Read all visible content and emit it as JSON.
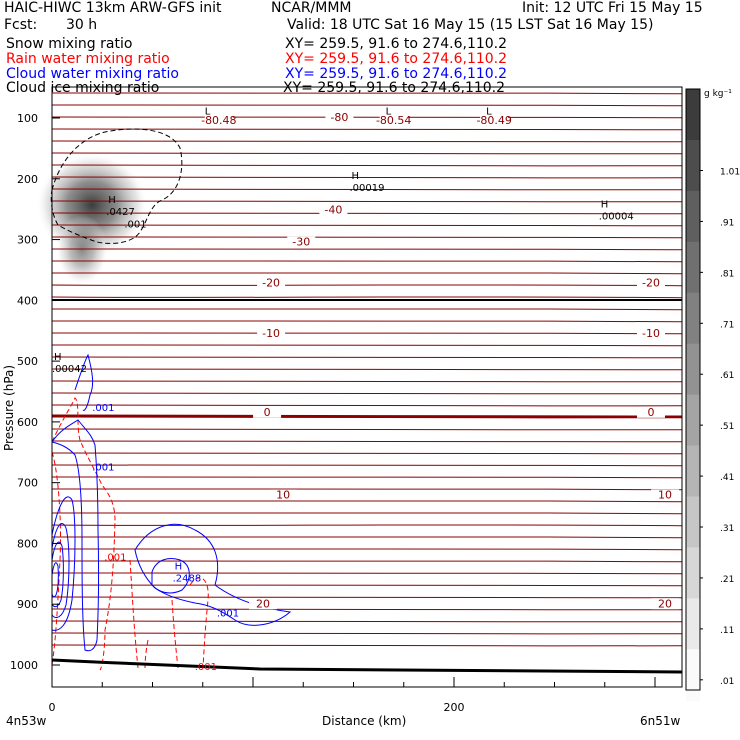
{
  "header": {
    "model": "HAIC-HIWC 13km ARW-GFS init",
    "org": "NCAR/MMM",
    "init": "Init: 12 UTC Fri 15 May 15",
    "fcst_label": "Fcst:",
    "fcst_value": "30 h",
    "valid": "Valid: 18 UTC Sat 16 May 15 (15 LST Sat 16 May 15)"
  },
  "fields": [
    {
      "name": "Snow mixing ratio",
      "xy": "XY= 259.5, 91.6 to 274.6,110.2",
      "color": "#000000"
    },
    {
      "name": "Rain water mixing ratio",
      "xy": "XY= 259.5, 91.6 to 274.6,110.2",
      "color": "#ff0000"
    },
    {
      "name": "Cloud water mixing ratio",
      "xy": "XY= 259.5, 91.6 to 274.6,110.2",
      "color": "#0000ff"
    },
    {
      "name": "Cloud ice mixing ratio",
      "xy": "XY= 259.5, 91.6 to 274.6,110.2",
      "color": "#000000"
    }
  ],
  "chart_data": {
    "type": "cross-section",
    "xlabel": "Distance (km)",
    "ylabel": "Pressure (hPa)",
    "xlim": [
      0,
      300
    ],
    "ylim": [
      1000,
      70
    ],
    "x_ticks": [
      0,
      200
    ],
    "y_ticks": [
      100,
      200,
      300,
      400,
      500,
      600,
      700,
      800,
      900,
      1000
    ],
    "endpoints": {
      "left": "4n53w",
      "right": "6n51w"
    },
    "colorbar": {
      "unit": "g kg⁻¹",
      "labels": [
        "1.01",
        ".91",
        ".81",
        ".71",
        ".61",
        ".51",
        ".41",
        ".31",
        ".21",
        ".11",
        ".01"
      ]
    },
    "temperature_labels": [
      {
        "text": "-80.48",
        "x": 83,
        "p": 110
      },
      {
        "text": "-80",
        "x": 143,
        "p": 105
      },
      {
        "text": "-80.54",
        "x": 170,
        "p": 110
      },
      {
        "text": "-80.49",
        "x": 220,
        "p": 110
      },
      {
        "text": "-40",
        "x": 140,
        "p": 257
      },
      {
        "text": "-30",
        "x": 124,
        "p": 310
      },
      {
        "text": "-20",
        "x": 109,
        "p": 377
      },
      {
        "text": "-20",
        "x": 298,
        "p": 377
      },
      {
        "text": "-10",
        "x": 109,
        "p": 460
      },
      {
        "text": "-10",
        "x": 298,
        "p": 460
      },
      {
        "text": "0",
        "x": 107,
        "p": 590
      },
      {
        "text": "0",
        "x": 298,
        "p": 590
      },
      {
        "text": "10",
        "x": 115,
        "p": 726
      },
      {
        "text": "10",
        "x": 305,
        "p": 726
      },
      {
        "text": "20",
        "x": 105,
        "p": 905
      },
      {
        "text": "20",
        "x": 305,
        "p": 905
      }
    ],
    "extrema": [
      {
        "type": "L",
        "x": 75,
        "p": 94
      },
      {
        "type": "L",
        "x": 165,
        "p": 94
      },
      {
        "type": "L",
        "x": 215,
        "p": 94
      },
      {
        "type": "H",
        "x": 148,
        "p": 200,
        "value": ".00019"
      },
      {
        "type": "H",
        "x": 272,
        "p": 247,
        "value": ".00004"
      },
      {
        "type": "H",
        "x": 27,
        "p": 240,
        "value": ".0427"
      },
      {
        "type": "H",
        "x": 0,
        "p": 498,
        "value": ".00042"
      },
      {
        "type": "H",
        "x": 60,
        "p": 843,
        "value": ".2488"
      }
    ],
    "contour_labels": [
      {
        "text": ".001",
        "x": 36,
        "p": 280,
        "color": "#000000"
      },
      {
        "text": ".001",
        "x": 20,
        "p": 582,
        "color": "#0000ff"
      },
      {
        "text": ".001",
        "x": 20,
        "p": 680,
        "color": "#0000ff"
      },
      {
        "text": ".001",
        "x": 26,
        "p": 828,
        "color": "#ff0000"
      },
      {
        "text": ".001",
        "x": 82,
        "p": 920,
        "color": "#0000ff"
      },
      {
        "text": ".001",
        "x": 71,
        "p": 1008,
        "color": "#ff0000"
      }
    ]
  }
}
